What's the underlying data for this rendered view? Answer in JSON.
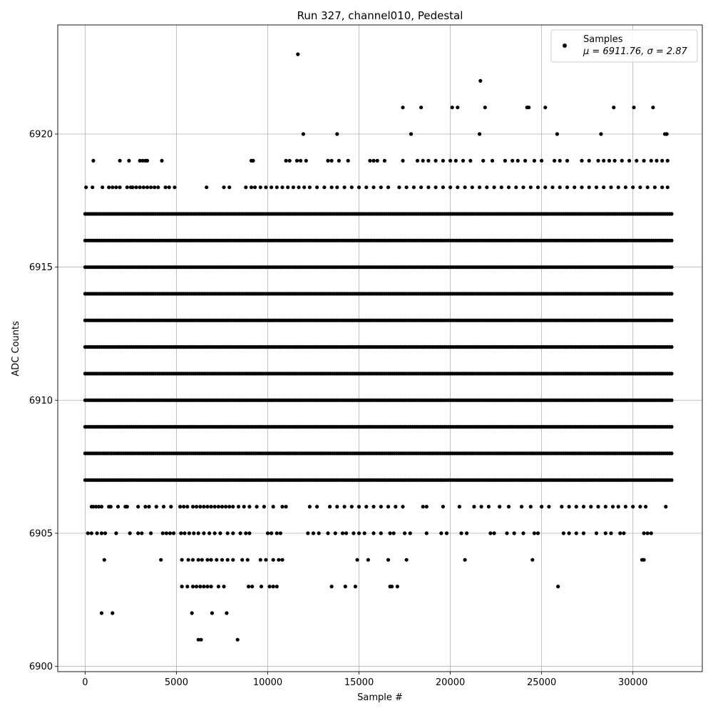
{
  "chart_data": {
    "type": "scatter",
    "title": "Run 327, channel010, Pedestal",
    "xlabel": "Sample #",
    "ylabel": "ADC Counts",
    "xlim": [
      -1500,
      33800
    ],
    "ylim": [
      6899.8,
      6924.1
    ],
    "xticks": [
      0,
      5000,
      10000,
      15000,
      20000,
      25000,
      30000
    ],
    "yticks": [
      6900,
      6905,
      6910,
      6915,
      6920
    ],
    "grid": true,
    "legend": {
      "placement": "top-right",
      "entries": [
        {
          "label": "Samples",
          "stat_line": "μ = 6911.76, σ = 2.87",
          "marker": "circle"
        }
      ]
    },
    "series": [
      {
        "name": "Samples",
        "color": "#000000",
        "n_samples": 32200,
        "rows": [
          {
            "y": 6906,
            "x": [
              350,
              450,
              600,
              750,
              900,
              1300,
              1400,
              1800,
              2200,
              2300,
              2900,
              3300,
              3500,
              3900,
              4300,
              4700,
              5200,
              5400,
              5600,
              5900,
              6100,
              6300,
              6500,
              6700,
              6900,
              7100,
              7300,
              7500,
              7700,
              7900,
              8100,
              8400,
              8700,
              9000,
              9400,
              9800,
              10300,
              10800,
              11000,
              12300,
              12700,
              13400,
              13800,
              14200,
              14600,
              15000,
              15400,
              15800,
              16200,
              16600,
              17000,
              17400,
              18500,
              18700,
              19600,
              20500,
              21300,
              21700,
              22100,
              22700,
              23200,
              23900,
              24400,
              25000,
              25400,
              26100,
              26500,
              26900,
              27300,
              27700,
              28100,
              28500,
              28900,
              29200,
              29600,
              30000,
              30400,
              30700,
              31800
            ]
          },
          {
            "y": 6905,
            "x": [
              150,
              350,
              650,
              900,
              1100,
              1700,
              2450,
              2900,
              3100,
              3600,
              4250,
              4450,
              4650,
              4850,
              5250,
              5450,
              5700,
              5950,
              6200,
              6500,
              6800,
              7100,
              7400,
              7800,
              8100,
              8500,
              8800,
              9000,
              10000,
              10200,
              10500,
              10700,
              12200,
              12500,
              12800,
              13300,
              13700,
              14100,
              14300,
              14700,
              15000,
              15300,
              15800,
              16200,
              16700,
              16900,
              17500,
              17800,
              18700,
              19500,
              19800,
              20600,
              20900,
              22200,
              22400,
              23100,
              23500,
              24000,
              24600,
              24800,
              26200,
              26500,
              26900,
              27300,
              28000,
              28500,
              28800,
              29300,
              29500,
              30600,
              30800,
              31000
            ]
          },
          {
            "y": 6904,
            "x": [
              1050,
              4150,
              5300,
              5650,
              5900,
              6200,
              6400,
              6700,
              6900,
              7200,
              7500,
              7800,
              8100,
              8600,
              8900,
              9600,
              9900,
              10300,
              10600,
              10800,
              14900,
              15500,
              16600,
              17600,
              20800,
              24500,
              30500,
              30600
            ]
          },
          {
            "y": 6903,
            "x": [
              5300,
              5600,
              5900,
              6100,
              6300,
              6500,
              6700,
              6900,
              7300,
              7600,
              8950,
              9150,
              9650,
              10100,
              10300,
              10500,
              13500,
              14250,
              14800,
              16700,
              16800,
              17100,
              25900
            ]
          },
          {
            "y": 6902,
            "x": [
              900,
              1500,
              5850,
              6950,
              7750
            ]
          },
          {
            "y": 6901,
            "x": [
              6200,
              6350,
              8350
            ]
          },
          {
            "y": 6918,
            "x": [
              50,
              400,
              950,
              1300,
              1500,
              1700,
              1900,
              2300,
              2500,
              2600,
              2800,
              3000,
              3200,
              3400,
              3600,
              3800,
              4000,
              4400,
              4600,
              4900,
              6650,
              7600,
              7900,
              8800,
              9100,
              9300,
              9600,
              9900,
              10200,
              10500,
              10800,
              11100,
              11400,
              11700,
              12000,
              12300,
              12700,
              13100,
              13500,
              13800,
              14200,
              14600,
              15000,
              15400,
              15800,
              16200,
              16600,
              17200,
              17600,
              18000,
              18400,
              18800,
              19200,
              19600,
              20000,
              20400,
              20800,
              21200,
              21600,
              22000,
              22400,
              22800,
              23200,
              23600,
              24000,
              24400,
              24800,
              25200,
              25600,
              26000,
              26400,
              26800,
              27200,
              27600,
              28000,
              28400,
              28800,
              29200,
              29600,
              30000,
              30400,
              30800,
              31200,
              31600,
              31900
            ]
          },
          {
            "y": 6919,
            "x": [
              450,
              1900,
              2400,
              3000,
              3150,
              3300,
              3400,
              4200,
              9100,
              9200,
              11000,
              11200,
              11600,
              11800,
              12100,
              13300,
              13500,
              13900,
              14400,
              15600,
              15800,
              16000,
              16400,
              17400,
              18200,
              18500,
              18800,
              19200,
              19600,
              20000,
              20300,
              20700,
              21100,
              21800,
              22300,
              23000,
              23400,
              23700,
              24100,
              24600,
              25000,
              25700,
              26000,
              26400,
              27200,
              27600,
              28100,
              28400,
              28700,
              29000,
              29400,
              29800,
              30200,
              30600,
              31000,
              31300,
              31600,
              31900
            ]
          },
          {
            "y": 6920,
            "x": [
              11950,
              13800,
              17850,
              21600,
              25850,
              28250,
              31750,
              31850
            ]
          },
          {
            "y": 6921,
            "x": [
              17400,
              18400,
              20100,
              20400,
              21900,
              24200,
              24300,
              25200,
              28950,
              30050,
              31100
            ]
          },
          {
            "y": 6922,
            "x": [
              21650
            ]
          },
          {
            "y": 6923,
            "x": [
              11650
            ]
          }
        ],
        "dense_rows": [
          6907,
          6908,
          6909,
          6910,
          6911,
          6912,
          6913,
          6914,
          6915,
          6916,
          6917
        ],
        "dense_range": [
          0,
          32200
        ]
      }
    ]
  }
}
